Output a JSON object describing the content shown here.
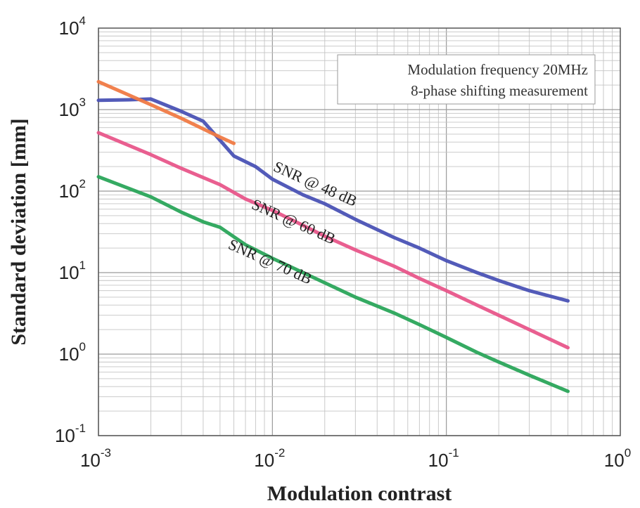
{
  "chart_data": {
    "type": "line",
    "xscale": "log",
    "yscale": "log",
    "xlabel": "Modulation contrast",
    "ylabel": "Standard deviation [mm]",
    "xlim": [
      0.001,
      1
    ],
    "ylim": [
      0.1,
      10000
    ],
    "grid": true,
    "x_ticks": [
      {
        "base": "10",
        "exp": "-3"
      },
      {
        "base": "10",
        "exp": "-2"
      },
      {
        "base": "10",
        "exp": "-1"
      },
      {
        "base": "10",
        "exp": "0"
      }
    ],
    "y_ticks": [
      {
        "base": "10",
        "exp": "-1"
      },
      {
        "base": "10",
        "exp": "0"
      },
      {
        "base": "10",
        "exp": "1"
      },
      {
        "base": "10",
        "exp": "2"
      },
      {
        "base": "10",
        "exp": "3"
      },
      {
        "base": "10",
        "exp": "4"
      }
    ],
    "legend_lines": [
      "Modulation frequency 20MHz",
      "8-phase shifting measurement"
    ],
    "legend_position": "top-right",
    "series": [
      {
        "label": "SNR @ 48 dB",
        "color": "#4a52b5",
        "x": [
          0.001,
          0.0015,
          0.002,
          0.003,
          0.004,
          0.005,
          0.006,
          0.008,
          0.01,
          0.015,
          0.02,
          0.03,
          0.05,
          0.07,
          0.1,
          0.15,
          0.2,
          0.3,
          0.5
        ],
        "y": [
          1300,
          1320,
          1350,
          950,
          720,
          420,
          270,
          200,
          140,
          90,
          70,
          45,
          27,
          20,
          14,
          10,
          8,
          6,
          4.5
        ]
      },
      {
        "label": "SNR @ 60 dB",
        "color": "#e8568a",
        "x": [
          0.001,
          0.002,
          0.003,
          0.005,
          0.007,
          0.01,
          0.015,
          0.02,
          0.03,
          0.05,
          0.07,
          0.1,
          0.15,
          0.2,
          0.3,
          0.5
        ],
        "y": [
          520,
          280,
          190,
          120,
          80,
          58,
          38,
          28,
          19,
          12,
          8.5,
          6,
          4,
          3,
          2,
          1.2
        ]
      },
      {
        "label": "SNR @ 70 dB",
        "color": "#2aa55a",
        "x": [
          0.001,
          0.002,
          0.003,
          0.004,
          0.005,
          0.007,
          0.01,
          0.015,
          0.02,
          0.03,
          0.05,
          0.07,
          0.1,
          0.15,
          0.2,
          0.3,
          0.5
        ],
        "y": [
          150,
          85,
          55,
          42,
          36,
          22,
          15,
          10,
          7.5,
          5,
          3.2,
          2.3,
          1.6,
          1.05,
          0.8,
          0.55,
          0.35
        ]
      },
      {
        "label": "",
        "color": "#f07a45",
        "x": [
          0.001,
          0.002,
          0.003,
          0.005,
          0.006
        ],
        "y": [
          2200,
          1150,
          780,
          460,
          385
        ]
      }
    ],
    "annotations": [
      {
        "text": "SNR @ 48 dB",
        "at_x": 0.01,
        "at_y": 180,
        "rotate": 24
      },
      {
        "text": "SNR @ 60 dB",
        "at_x": 0.0075,
        "at_y": 62,
        "rotate": 24
      },
      {
        "text": "SNR @ 70 dB",
        "at_x": 0.0055,
        "at_y": 20,
        "rotate": 24
      }
    ]
  }
}
